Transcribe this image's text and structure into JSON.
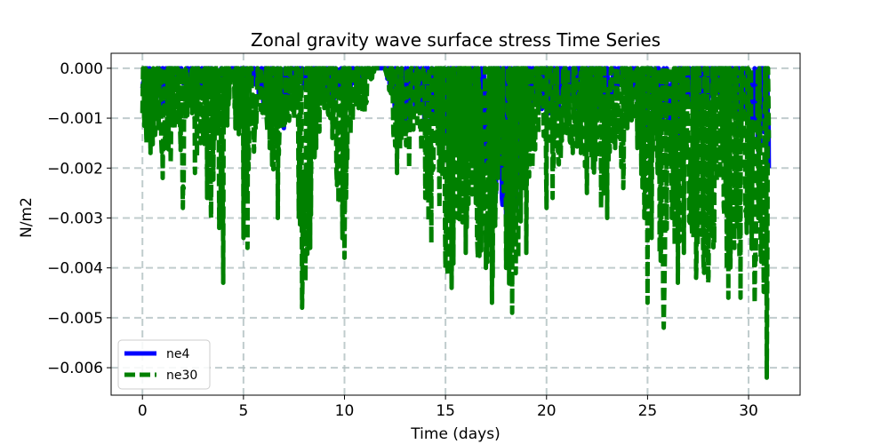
{
  "chart_data": {
    "type": "line",
    "title": "Zonal gravity wave surface stress Time Series",
    "xlabel": "Time (days)",
    "ylabel": "N/m2",
    "xlim": [
      -1.55,
      32.55
    ],
    "ylim": [
      -0.00655,
      0.0003
    ],
    "xticks": [
      0,
      5,
      10,
      15,
      20,
      25,
      30
    ],
    "xtick_labels": [
      "0",
      "5",
      "10",
      "15",
      "20",
      "25",
      "30"
    ],
    "yticks": [
      0.0,
      -0.001,
      -0.002,
      -0.003,
      -0.004,
      -0.005,
      -0.006
    ],
    "ytick_labels": [
      "0.000",
      "−0.001",
      "−0.002",
      "−0.003",
      "−0.004",
      "−0.005",
      "−0.006"
    ],
    "grid": true,
    "legend_position": "lower-left",
    "series": [
      {
        "name": "ne4",
        "color": "#0000ff",
        "style": "solid",
        "envelope": [
          [
            0.0,
            -0.0004
          ],
          [
            0.3,
            -0.0009
          ],
          [
            0.6,
            -0.0004
          ],
          [
            1.0,
            -0.0009
          ],
          [
            1.4,
            -0.0004
          ],
          [
            2.0,
            -0.0003
          ],
          [
            2.5,
            -0.0002
          ],
          [
            3.0,
            -0.0004
          ],
          [
            3.5,
            -0.0003
          ],
          [
            4.0,
            -0.0002
          ],
          [
            4.5,
            -0.0002
          ],
          [
            5.0,
            -0.0003
          ],
          [
            5.5,
            -0.0003
          ],
          [
            6.0,
            -0.0008
          ],
          [
            6.5,
            -0.0004
          ],
          [
            7.0,
            -0.0012
          ],
          [
            7.5,
            -0.0005
          ],
          [
            8.0,
            -0.0004
          ],
          [
            8.5,
            -0.0003
          ],
          [
            9.0,
            -0.0005
          ],
          [
            9.5,
            -0.0006
          ],
          [
            10.0,
            -0.0006
          ],
          [
            10.5,
            -0.0003
          ],
          [
            11.0,
            -0.0003
          ],
          [
            11.5,
            0.0
          ],
          [
            12.0,
            0.0
          ],
          [
            12.5,
            -0.001
          ],
          [
            13.0,
            -0.0012
          ],
          [
            13.5,
            -0.0008
          ],
          [
            14.0,
            -0.0012
          ],
          [
            14.5,
            -0.001
          ],
          [
            15.0,
            -0.0013
          ],
          [
            15.5,
            -0.0016
          ],
          [
            16.0,
            -0.0018
          ],
          [
            16.5,
            -0.0022
          ],
          [
            17.0,
            -0.002
          ],
          [
            17.5,
            -0.0025
          ],
          [
            18.0,
            -0.003
          ],
          [
            18.5,
            -0.0028
          ],
          [
            19.0,
            -0.0012
          ],
          [
            19.5,
            -0.0006
          ],
          [
            20.0,
            -0.001
          ],
          [
            20.5,
            -0.0009
          ],
          [
            21.0,
            -0.0005
          ],
          [
            21.5,
            -0.0008
          ],
          [
            22.0,
            -0.0006
          ],
          [
            22.5,
            -0.001
          ],
          [
            23.0,
            -0.0007
          ],
          [
            23.5,
            -0.0005
          ],
          [
            24.0,
            -0.0004
          ],
          [
            24.5,
            -0.0007
          ],
          [
            25.0,
            -0.0014
          ],
          [
            25.5,
            -0.0012
          ],
          [
            26.0,
            -0.001
          ],
          [
            26.5,
            -0.0015
          ],
          [
            27.0,
            -0.0006
          ],
          [
            27.5,
            -0.001
          ],
          [
            28.0,
            -0.0007
          ],
          [
            28.5,
            -0.0005
          ],
          [
            29.0,
            -0.0003
          ],
          [
            29.5,
            -0.0012
          ],
          [
            30.0,
            -0.001
          ],
          [
            30.5,
            -0.0018
          ],
          [
            31.0,
            -0.002
          ]
        ]
      },
      {
        "name": "ne30",
        "color": "#008000",
        "style": "dashed",
        "envelope": [
          [
            0.0,
            -0.0009
          ],
          [
            0.2,
            -0.0015
          ],
          [
            0.4,
            -0.0017
          ],
          [
            0.8,
            -0.0012
          ],
          [
            1.0,
            -0.0022
          ],
          [
            1.4,
            -0.0019
          ],
          [
            1.8,
            -0.001
          ],
          [
            2.0,
            -0.0028
          ],
          [
            2.4,
            -0.0006
          ],
          [
            2.6,
            -0.0021
          ],
          [
            3.0,
            -0.0014
          ],
          [
            3.2,
            -0.0026
          ],
          [
            3.4,
            -0.003
          ],
          [
            3.8,
            -0.0032
          ],
          [
            4.0,
            -0.0043
          ],
          [
            4.3,
            -0.0006
          ],
          [
            4.6,
            -0.0012
          ],
          [
            5.0,
            -0.0034
          ],
          [
            5.2,
            -0.0036
          ],
          [
            5.6,
            -0.0012
          ],
          [
            6.0,
            -0.0009
          ],
          [
            6.3,
            -0.0016
          ],
          [
            6.7,
            -0.003
          ],
          [
            7.0,
            -0.0012
          ],
          [
            7.5,
            -0.001
          ],
          [
            7.9,
            -0.0048
          ],
          [
            8.3,
            -0.0036
          ],
          [
            8.6,
            -0.0016
          ],
          [
            9.0,
            -0.0008
          ],
          [
            9.4,
            -0.0014
          ],
          [
            9.7,
            -0.0027
          ],
          [
            10.0,
            -0.0038
          ],
          [
            10.3,
            -0.0013
          ],
          [
            10.7,
            -0.0008
          ],
          [
            11.0,
            -0.0009
          ],
          [
            11.5,
            0.0
          ],
          [
            12.0,
            0.0
          ],
          [
            12.6,
            -0.0021
          ],
          [
            12.9,
            -0.0013
          ],
          [
            13.2,
            -0.002
          ],
          [
            13.6,
            -0.0011
          ],
          [
            14.0,
            -0.0026
          ],
          [
            14.3,
            -0.0035
          ],
          [
            14.7,
            -0.0028
          ],
          [
            15.0,
            -0.004
          ],
          [
            15.3,
            -0.0044
          ],
          [
            15.6,
            -0.003
          ],
          [
            16.0,
            -0.0037
          ],
          [
            16.3,
            -0.0025
          ],
          [
            16.6,
            -0.0038
          ],
          [
            17.0,
            -0.004
          ],
          [
            17.3,
            -0.0047
          ],
          [
            17.6,
            -0.0022
          ],
          [
            18.0,
            -0.004
          ],
          [
            18.3,
            -0.0049
          ],
          [
            18.6,
            -0.0038
          ],
          [
            19.0,
            -0.0037
          ],
          [
            19.3,
            -0.002
          ],
          [
            19.6,
            -0.0013
          ],
          [
            20.0,
            -0.0028
          ],
          [
            20.3,
            -0.0026
          ],
          [
            20.7,
            -0.0018
          ],
          [
            21.0,
            -0.0013
          ],
          [
            21.3,
            -0.0017
          ],
          [
            21.7,
            -0.0017
          ],
          [
            22.0,
            -0.0025
          ],
          [
            22.3,
            -0.002
          ],
          [
            22.7,
            -0.0028
          ],
          [
            23.0,
            -0.003
          ],
          [
            23.4,
            -0.0016
          ],
          [
            23.8,
            -0.0024
          ],
          [
            24.0,
            -0.0012
          ],
          [
            24.5,
            -0.0016
          ],
          [
            25.0,
            -0.0047
          ],
          [
            25.2,
            -0.0034
          ],
          [
            25.6,
            -0.0037
          ],
          [
            25.8,
            -0.0052
          ],
          [
            26.2,
            -0.003
          ],
          [
            26.5,
            -0.0043
          ],
          [
            26.8,
            -0.0037
          ],
          [
            27.1,
            -0.0031
          ],
          [
            27.4,
            -0.0042
          ],
          [
            27.8,
            -0.0041
          ],
          [
            28.0,
            -0.0043
          ],
          [
            28.3,
            -0.0035
          ],
          [
            28.6,
            -0.0022
          ],
          [
            29.0,
            -0.0046
          ],
          [
            29.3,
            -0.0036
          ],
          [
            29.6,
            -0.0046
          ],
          [
            30.0,
            -0.0031
          ],
          [
            30.3,
            -0.0047
          ],
          [
            30.6,
            -0.0038
          ],
          [
            30.9,
            -0.0062
          ],
          [
            31.0,
            -0.0014
          ]
        ]
      }
    ]
  }
}
